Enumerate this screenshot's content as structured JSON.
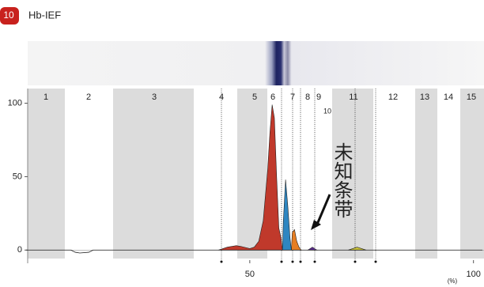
{
  "header": {
    "badge": "10",
    "title": "Hb-IEF"
  },
  "chart_data": {
    "type": "area",
    "zones": [
      "1",
      "2",
      "3",
      "4",
      "5",
      "6",
      "7",
      "8",
      "9",
      "10",
      "11",
      "12",
      "13",
      "14",
      "15"
    ],
    "annotation": "未知条带",
    "x_label": "(%)",
    "xlim": [
      0,
      102
    ],
    "ylim": [
      -9,
      110
    ],
    "xticks": [
      50,
      100
    ],
    "yticks": [
      0,
      50,
      100
    ],
    "trace": {
      "color": "#222222",
      "x": [
        0,
        10,
        11,
        12,
        14,
        15,
        102
      ],
      "values": [
        0,
        0,
        -1.5,
        -2,
        -1.5,
        0,
        0
      ]
    },
    "series": [
      {
        "color": "#c0392b",
        "x": [
          43,
          45,
          47,
          48,
          50,
          51,
          52,
          53,
          54,
          54.5,
          55,
          55.5,
          56,
          56.5,
          57,
          57.3
        ],
        "values": [
          0,
          2,
          3,
          2.5,
          1,
          2,
          6,
          20,
          55,
          80,
          99,
          90,
          50,
          15,
          8,
          0
        ]
      },
      {
        "color": "#2e86c1",
        "x": [
          57.3,
          57.5,
          58,
          58.5,
          59,
          59.3
        ],
        "values": [
          0,
          20,
          48,
          30,
          8,
          0
        ]
      },
      {
        "color": "#e67e22",
        "x": [
          59.3,
          59.5,
          60,
          60.5,
          61,
          61.5
        ],
        "values": [
          0,
          12,
          14,
          6,
          2,
          0
        ]
      },
      {
        "color": "#5b2c8f",
        "x": [
          63,
          64,
          65
        ],
        "values": [
          0,
          2,
          0
        ]
      },
      {
        "color": "#c9c23a",
        "x": [
          72,
          74,
          76
        ],
        "values": [
          0,
          2,
          0
        ]
      }
    ]
  }
}
